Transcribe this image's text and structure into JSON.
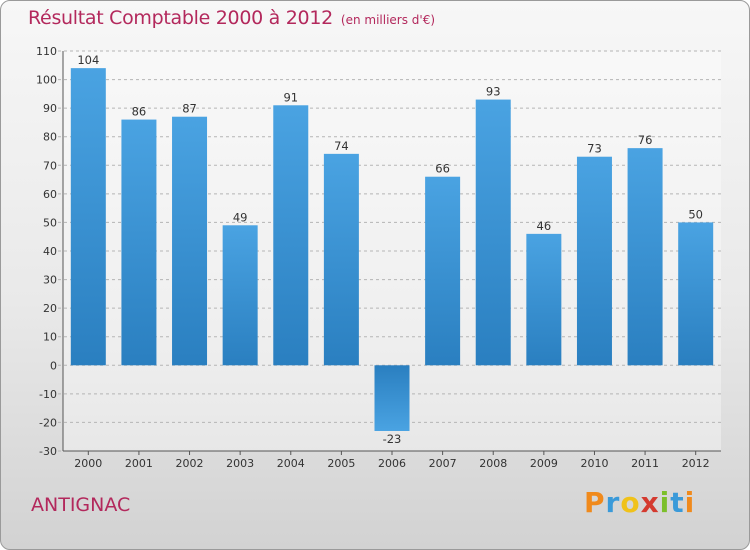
{
  "chart_data": {
    "type": "bar",
    "title": "Résultat Comptable 2000 à 2012",
    "subtitle": "(en milliers d'€)",
    "categories": [
      "2000",
      "2001",
      "2002",
      "2003",
      "2004",
      "2005",
      "2006",
      "2007",
      "2008",
      "2009",
      "2010",
      "2011",
      "2012"
    ],
    "values": [
      104,
      86,
      87,
      49,
      91,
      74,
      -23,
      66,
      93,
      46,
      73,
      76,
      50
    ],
    "ylim": [
      -30,
      110
    ],
    "yticks": [
      110,
      100,
      90,
      80,
      70,
      60,
      50,
      40,
      30,
      20,
      10,
      0,
      -10,
      -20,
      -30
    ],
    "grid": true,
    "bar_color": "#4aa3e2",
    "bar_color_dark": "#2a7fc0",
    "grid_color": "#b5b5b5"
  },
  "place": "ANTIGNAC",
  "brand": {
    "letters": [
      "P",
      "r",
      "o",
      "x",
      "i",
      "t",
      "i"
    ],
    "colors": [
      "#f08a1c",
      "#3a9ad9",
      "#f0c21a",
      "#d43a2f",
      "#7cbf2b",
      "#3a9ad9",
      "#f08a1c"
    ]
  }
}
